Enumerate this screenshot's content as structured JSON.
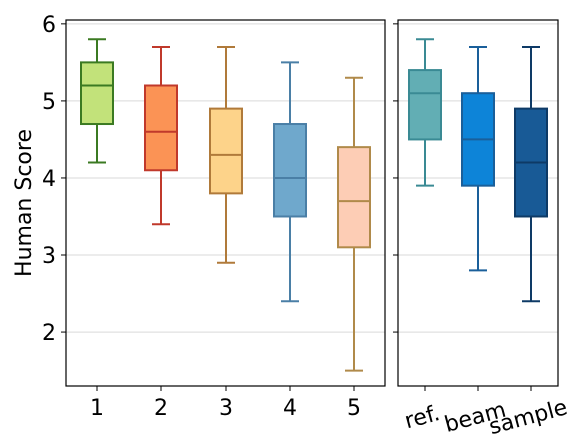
{
  "chart_data": [
    {
      "type": "box",
      "ylabel": "Human Score",
      "xlabel": "",
      "ylim": [
        1.3,
        6.05
      ],
      "yticks": [
        2,
        3,
        4,
        5,
        6
      ],
      "grid": "horizontal",
      "categories": [
        "1",
        "2",
        "3",
        "4",
        "5"
      ],
      "boxes": [
        {
          "label": "1",
          "whisker_low": 4.2,
          "q1": 4.7,
          "median": 5.2,
          "q3": 5.5,
          "whisker_high": 5.8,
          "fill": "#c2e27a",
          "edge": "#3b7a22"
        },
        {
          "label": "2",
          "whisker_low": 3.4,
          "q1": 4.1,
          "median": 4.6,
          "q3": 5.2,
          "whisker_high": 5.7,
          "fill": "#fb9355",
          "edge": "#c0392b"
        },
        {
          "label": "3",
          "whisker_low": 2.9,
          "q1": 3.8,
          "median": 4.3,
          "q3": 4.9,
          "whisker_high": 5.7,
          "fill": "#fdd38a",
          "edge": "#b07a3a"
        },
        {
          "label": "4",
          "whisker_low": 2.4,
          "q1": 3.5,
          "median": 4.0,
          "q3": 4.7,
          "whisker_high": 5.5,
          "fill": "#6fa8cc",
          "edge": "#4a7fa6"
        },
        {
          "label": "5",
          "whisker_low": 1.5,
          "q1": 3.1,
          "median": 3.7,
          "q3": 4.4,
          "whisker_high": 5.3,
          "fill": "#fdcdb5",
          "edge": "#b08a4a"
        }
      ]
    },
    {
      "type": "box",
      "ylabel": "",
      "xlabel": "",
      "ylim": [
        1.3,
        6.05
      ],
      "grid": "horizontal",
      "categories": [
        "ref.",
        "beam",
        "sample"
      ],
      "boxes": [
        {
          "label": "ref.",
          "whisker_low": 3.9,
          "q1": 4.5,
          "median": 5.1,
          "q3": 5.4,
          "whisker_high": 5.8,
          "fill": "#62aeb4",
          "edge": "#3a8a94"
        },
        {
          "label": "beam",
          "whisker_low": 2.8,
          "q1": 3.9,
          "median": 4.5,
          "q3": 5.1,
          "whisker_high": 5.7,
          "fill": "#0d84d8",
          "edge": "#1a5f9a"
        },
        {
          "label": "sample",
          "whisker_low": 2.4,
          "q1": 3.5,
          "median": 4.2,
          "q3": 4.9,
          "whisker_high": 5.7,
          "fill": "#185a96",
          "edge": "#0e3a66"
        }
      ]
    }
  ]
}
